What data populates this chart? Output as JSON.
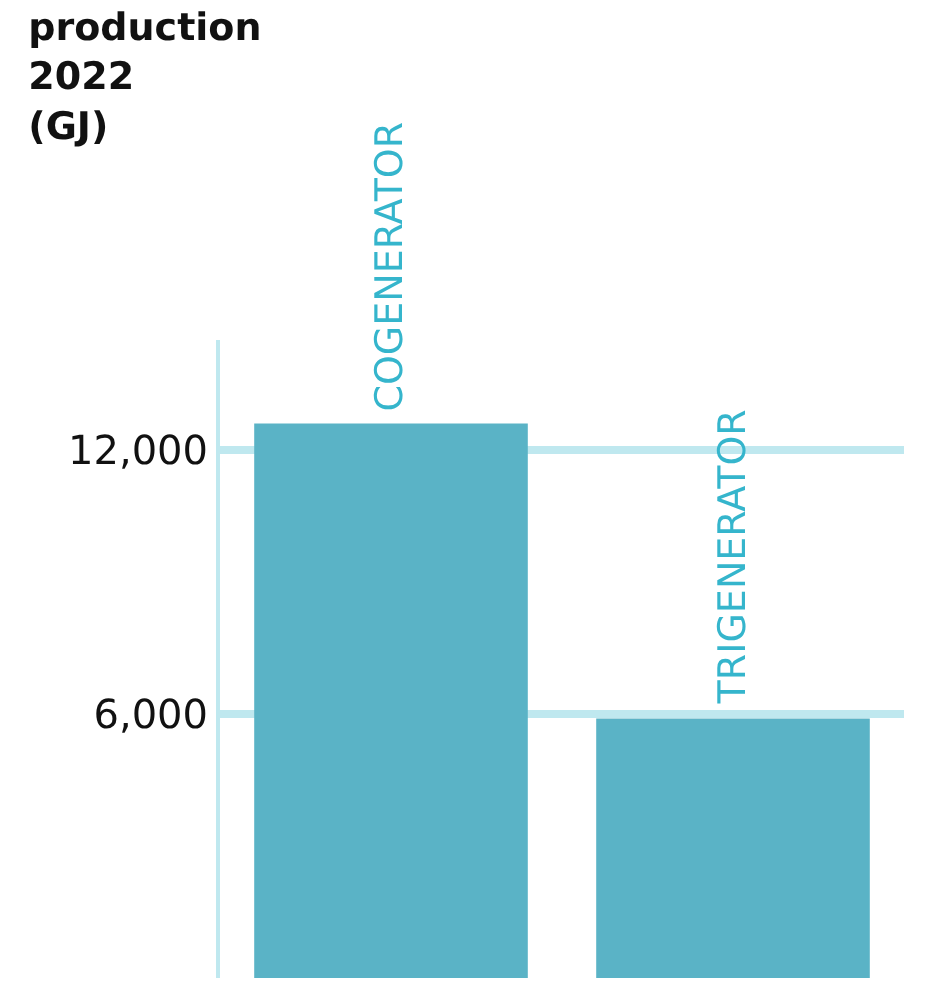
{
  "chart_data": {
    "type": "bar",
    "title": "production\n2022\n(GJ)",
    "categories": [
      "COGENERATOR",
      "TRIGENERATOR"
    ],
    "values": [
      12600,
      5900
    ],
    "color": "#5ab3c6",
    "ylim": [
      0,
      14500
    ],
    "yticks": [
      {
        "value": 6000,
        "label": "6,000"
      },
      {
        "value": 12000,
        "label": "12,000"
      }
    ],
    "grid": "y"
  }
}
